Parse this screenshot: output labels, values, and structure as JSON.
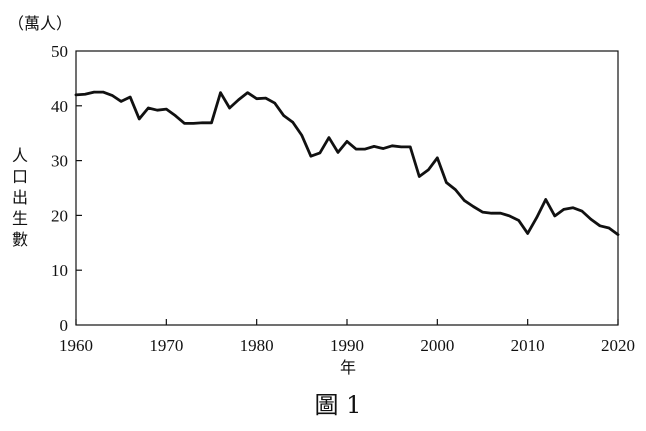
{
  "chart_data": {
    "type": "line",
    "unit_label": "（萬人）",
    "ylabel": "人口出生數",
    "xlabel": "年",
    "caption": "圖 1",
    "xlim": [
      1960,
      2020
    ],
    "ylim": [
      0,
      50
    ],
    "x_ticks": [
      1960,
      1970,
      1980,
      1990,
      2000,
      2010,
      2020
    ],
    "y_ticks": [
      0,
      10,
      20,
      30,
      40,
      50
    ],
    "grid": false,
    "line_color": "#111111",
    "series": [
      {
        "x": [
          1960,
          1961,
          1962,
          1963,
          1964,
          1965,
          1966,
          1967,
          1968,
          1969,
          1970,
          1971,
          1972,
          1973,
          1974,
          1975,
          1976,
          1977,
          1978,
          1979,
          1980,
          1981,
          1982,
          1983,
          1984,
          1985,
          1986,
          1987,
          1988,
          1989,
          1990,
          1991,
          1992,
          1993,
          1994,
          1995,
          1996,
          1997,
          1998,
          1999,
          2000,
          2001,
          2002,
          2003,
          2004,
          2005,
          2006,
          2007,
          2008,
          2009,
          2010,
          2011,
          2012,
          2013,
          2014,
          2015,
          2016,
          2017,
          2018,
          2019,
          2020
        ],
        "values": [
          42.0,
          42.1,
          42.5,
          42.5,
          41.9,
          40.8,
          41.6,
          37.6,
          39.6,
          39.2,
          39.4,
          38.2,
          36.8,
          36.8,
          36.9,
          36.9,
          42.4,
          39.6,
          41.1,
          42.4,
          41.3,
          41.4,
          40.5,
          38.2,
          37.0,
          34.6,
          30.8,
          31.4,
          34.2,
          31.5,
          33.5,
          32.1,
          32.1,
          32.6,
          32.2,
          32.7,
          32.5,
          32.5,
          27.1,
          28.3,
          30.5,
          26.0,
          24.7,
          22.7,
          21.6,
          20.6,
          20.4,
          20.4,
          19.9,
          19.1,
          16.7,
          19.6,
          22.9,
          19.9,
          21.1,
          21.4,
          20.8,
          19.3,
          18.1,
          17.7,
          16.5
        ]
      }
    ]
  }
}
